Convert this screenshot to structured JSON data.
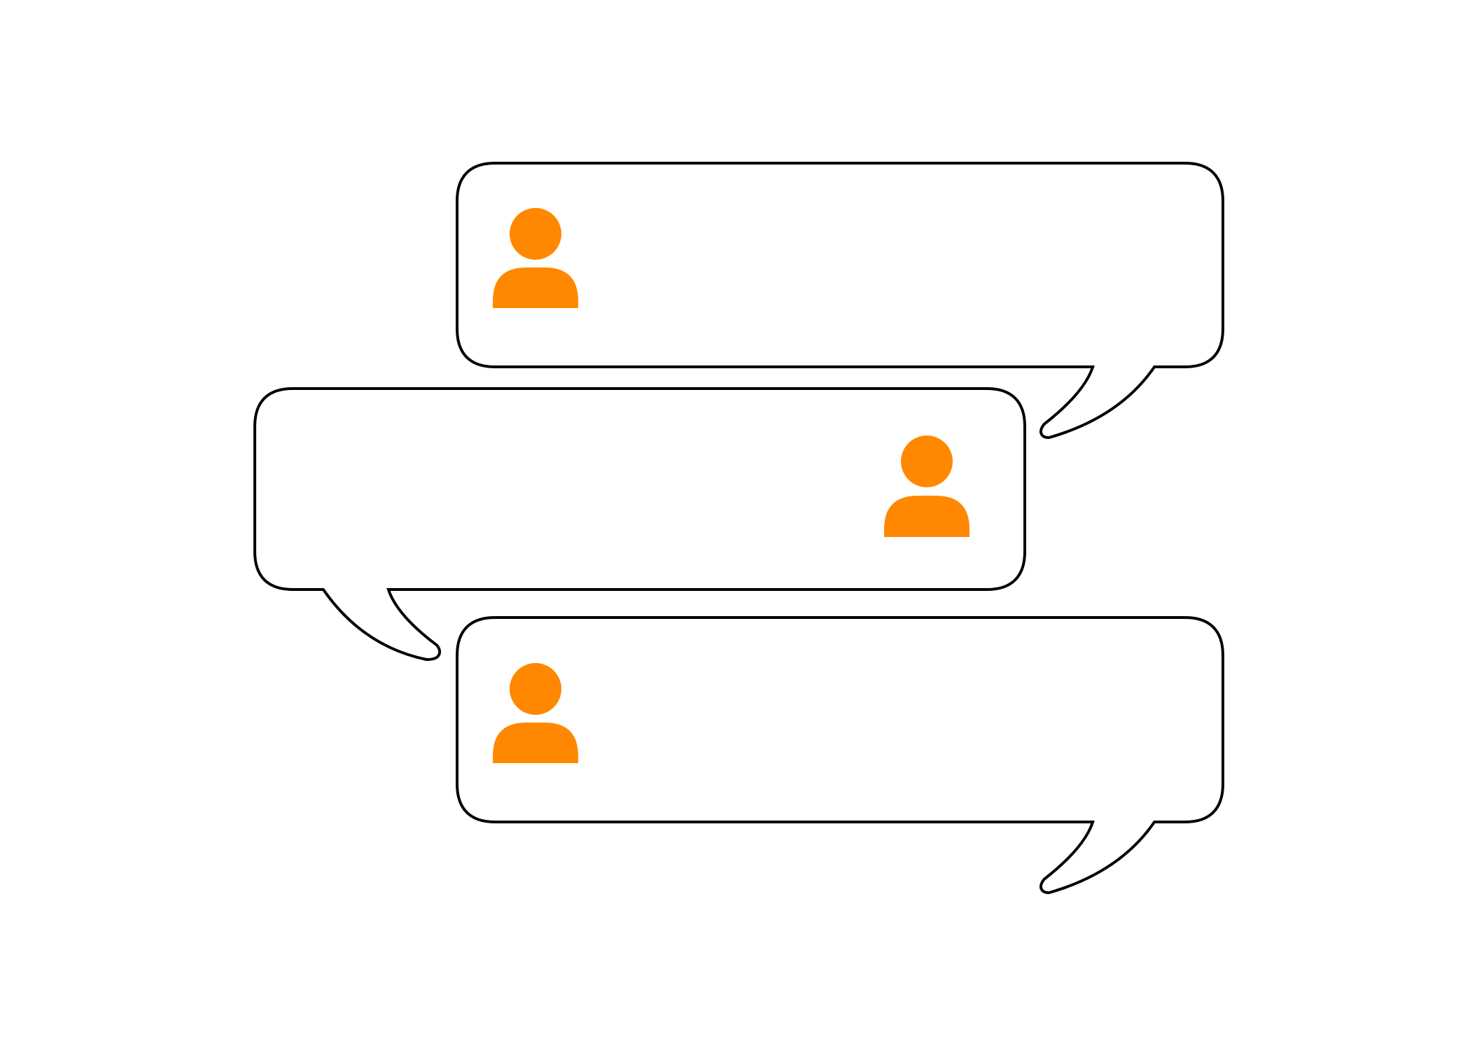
{
  "colors": {
    "background": "#ffffff",
    "outline": "#000000",
    "avatar": "#ff8800"
  },
  "messages": [
    {
      "side": "left-avatar",
      "tail": "bottom-right",
      "icon": "user-icon"
    },
    {
      "side": "right-avatar",
      "tail": "bottom-left",
      "icon": "user-icon"
    },
    {
      "side": "left-avatar",
      "tail": "bottom-right",
      "icon": "user-icon"
    }
  ]
}
